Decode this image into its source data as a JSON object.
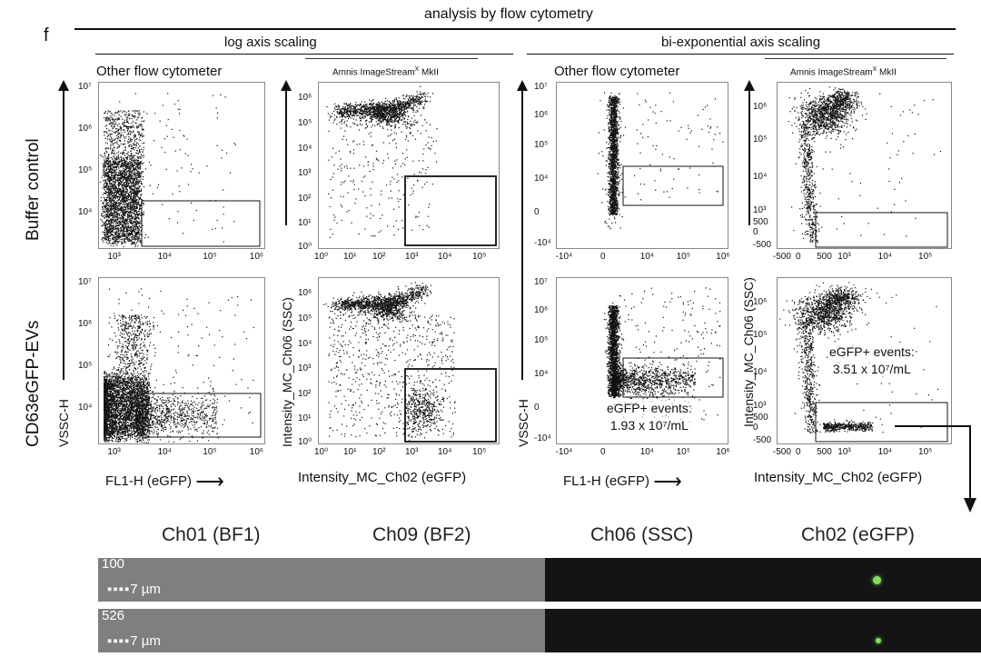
{
  "panel_letter": "f",
  "header": {
    "title": "analysis by flow cytometry",
    "log": "log axis scaling",
    "biexp": "bi-exponential axis scaling"
  },
  "instruments": {
    "other": "Other flow cytometer",
    "amnis": "Amnis ImageStream",
    "amnis_sup": "X",
    "amnis_suffix": " MkII"
  },
  "rows": {
    "buffer": "Buffer control",
    "cd63": "CD63eGFP-EVs"
  },
  "axes": {
    "vssc": "VSSC-H",
    "ssc": "Intensity_MC_Ch06 (SSC)",
    "fl1": "FL1-H (eGFP)",
    "ch02": "Intensity_MC_Ch02 (eGFP)",
    "arrow": "⟶"
  },
  "ticks": {
    "log_y_a": [
      "10⁷",
      "10⁶",
      "10⁵",
      "10⁴"
    ],
    "log_x_a": [
      "10³",
      "10⁴",
      "10⁵",
      "10⁶"
    ],
    "log_y_b": [
      "10⁶",
      "10⁵",
      "10⁴",
      "10³",
      "10²",
      "10¹",
      "10⁰"
    ],
    "log_x_b": [
      "10⁰",
      "10¹",
      "10²",
      "10³",
      "10⁴",
      "10⁵"
    ],
    "bi_y_a": [
      "10⁷",
      "10⁶",
      "10⁵",
      "10⁴",
      "0",
      "-10⁴"
    ],
    "bi_x_a": [
      "-10⁴",
      "0",
      "10⁴",
      "10⁵",
      "10⁶"
    ],
    "bi_y_b": [
      "10⁶",
      "10⁵",
      "10⁴",
      "10³",
      "500",
      "0",
      "-500"
    ],
    "bi_x_b": [
      "-500",
      "0",
      "500",
      "10³",
      "10⁴",
      "10⁵"
    ]
  },
  "annotations": {
    "other_events_1": "eGFP+ events:",
    "other_events_2": "1.93 x 10⁷/mL",
    "amnis_events_1": "eGFP+ events:",
    "amnis_events_2": "3.51 x 10⁷/mL"
  },
  "channels": [
    "Ch01 (BF1)",
    "Ch09 (BF2)",
    "Ch06 (SSC)",
    "Ch02 (eGFP)"
  ],
  "cells": [
    {
      "id": "100",
      "scale": "7 µm"
    },
    {
      "id": "526",
      "scale": "7 µm"
    }
  ],
  "colors": {
    "brightfield": "#7f7f7f",
    "darkfield": "#141414",
    "gfp": "#7fe05a"
  }
}
